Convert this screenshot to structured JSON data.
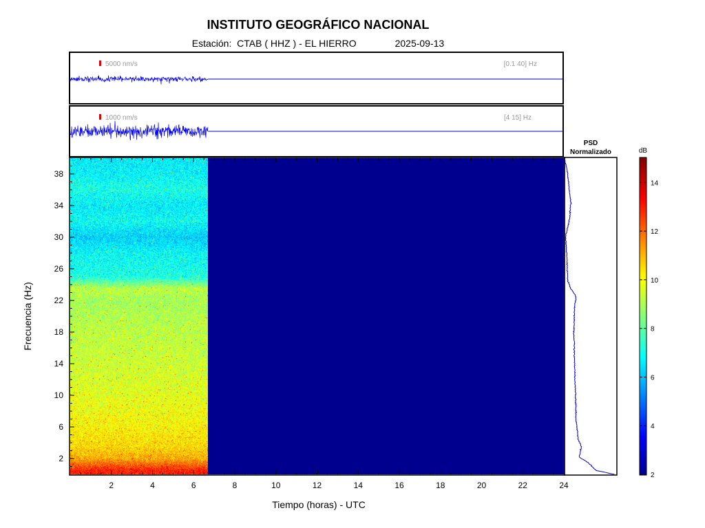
{
  "header": {
    "title": "INSTITUTO GEOGRÁFICO NACIONAL",
    "station": "Estación:  CTAB ( HHZ ) - EL HIERRO",
    "date": "2025-09-13"
  },
  "colors": {
    "trace": "#0000ff",
    "scale_bar": "#dd0000",
    "spec_empty": "#00008f",
    "psd_line": "#0000c8"
  },
  "chart_data": [
    {
      "type": "line",
      "name": "waveform-broadband",
      "scale_label": "5000 nm/s",
      "band_label": "[0.1 40] Hz",
      "x_range": [
        0,
        24
      ],
      "data_end_hour": 6.7,
      "relative_amplitude": 0.12
    },
    {
      "type": "line",
      "name": "waveform-filtered",
      "scale_label": "1000 nm/s",
      "band_label": "[4 15] Hz",
      "x_range": [
        0,
        24
      ],
      "data_end_hour": 6.7,
      "relative_amplitude": 0.32
    },
    {
      "type": "heatmap",
      "name": "spectrogram",
      "xlabel": "Tiempo (horas) - UTC",
      "ylabel": "Frecuencia  (Hz)",
      "xlim": [
        0,
        24
      ],
      "ylim": [
        0,
        40
      ],
      "xticks": [
        2,
        4,
        6,
        8,
        10,
        12,
        14,
        16,
        18,
        20,
        22,
        24
      ],
      "yticks": [
        2,
        6,
        10,
        14,
        18,
        22,
        26,
        30,
        34,
        38
      ],
      "data_end_hour": 6.7,
      "colorscale": "jet",
      "level_profile_db": [
        {
          "f": 0.5,
          "db": 13.0
        },
        {
          "f": 2,
          "db": 11.2
        },
        {
          "f": 3.5,
          "db": 10.6
        },
        {
          "f": 6,
          "db": 10.2
        },
        {
          "f": 10,
          "db": 9.8
        },
        {
          "f": 14,
          "db": 9.5
        },
        {
          "f": 18,
          "db": 9.3
        },
        {
          "f": 22,
          "db": 9.0
        },
        {
          "f": 23.5,
          "db": 9.3
        },
        {
          "f": 25,
          "db": 7.2
        },
        {
          "f": 28,
          "db": 6.9
        },
        {
          "f": 30,
          "db": 6.3
        },
        {
          "f": 32,
          "db": 7.0
        },
        {
          "f": 34,
          "db": 6.7
        },
        {
          "f": 36,
          "db": 7.2
        },
        {
          "f": 38,
          "db": 6.8
        },
        {
          "f": 40,
          "db": 6.7
        }
      ]
    },
    {
      "type": "line",
      "name": "psd",
      "title_line1": "PSD",
      "title_line2": "Normalizado",
      "ylim": [
        0,
        40
      ],
      "points": [
        {
          "f": 0,
          "v": 0.95
        },
        {
          "f": 0.5,
          "v": 0.6
        },
        {
          "f": 1.5,
          "v": 0.45
        },
        {
          "f": 2.2,
          "v": 0.28
        },
        {
          "f": 3.5,
          "v": 0.32
        },
        {
          "f": 4.5,
          "v": 0.26
        },
        {
          "f": 7,
          "v": 0.22
        },
        {
          "f": 10,
          "v": 0.21
        },
        {
          "f": 14,
          "v": 0.19
        },
        {
          "f": 18,
          "v": 0.18
        },
        {
          "f": 21,
          "v": 0.19
        },
        {
          "f": 22.5,
          "v": 0.22
        },
        {
          "f": 23.5,
          "v": 0.12
        },
        {
          "f": 24.5,
          "v": 0.06
        },
        {
          "f": 27,
          "v": 0.05
        },
        {
          "f": 30,
          "v": 0.02
        },
        {
          "f": 32.5,
          "v": 0.1
        },
        {
          "f": 34.5,
          "v": 0.12
        },
        {
          "f": 36.5,
          "v": 0.08
        },
        {
          "f": 38.5,
          "v": 0.05
        },
        {
          "f": 40,
          "v": 0.0
        }
      ]
    },
    {
      "type": "colorbar",
      "name": "colorbar",
      "label": "dB",
      "range": [
        2,
        15
      ],
      "ticks": [
        2,
        4,
        6,
        8,
        10,
        12,
        14
      ]
    }
  ]
}
